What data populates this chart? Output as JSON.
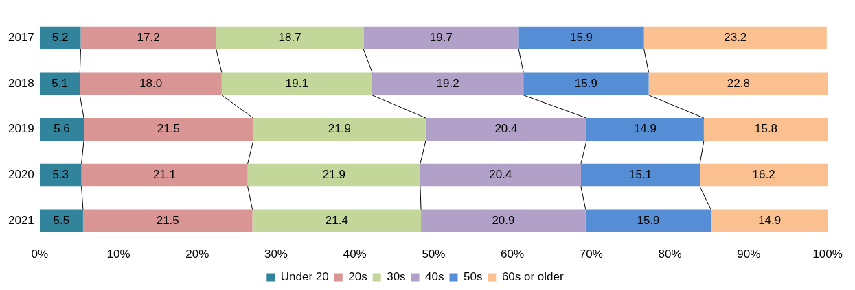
{
  "chart_data": {
    "type": "bar",
    "orientation": "horizontal",
    "stacked": true,
    "categories": [
      "2017",
      "2018",
      "2019",
      "2020",
      "2021"
    ],
    "series": [
      {
        "name": "Under 20",
        "color": "#31849b",
        "values": [
          5.2,
          5.1,
          5.6,
          5.3,
          5.5
        ],
        "value_labels": [
          "5.2",
          "5.1",
          "5.6",
          "5.3",
          "5.5"
        ]
      },
      {
        "name": "20s",
        "color": "#da9694",
        "values": [
          17.2,
          18.0,
          21.5,
          21.1,
          21.5
        ],
        "value_labels": [
          "17.2",
          "18.0",
          "21.5",
          "21.1",
          "21.5"
        ]
      },
      {
        "name": "30s",
        "color": "#c4d79b",
        "values": [
          18.7,
          19.1,
          21.9,
          21.9,
          21.4
        ],
        "value_labels": [
          "18.7",
          "19.1",
          "21.9",
          "21.9",
          "21.4"
        ]
      },
      {
        "name": "40s",
        "color": "#b1a0c7",
        "values": [
          19.7,
          19.2,
          20.4,
          20.4,
          20.9
        ],
        "value_labels": [
          "19.7",
          "19.2",
          "20.4",
          "20.4",
          "20.9"
        ]
      },
      {
        "name": "50s",
        "color": "#558ed5",
        "values": [
          15.9,
          15.9,
          14.9,
          15.1,
          15.9
        ],
        "value_labels": [
          "15.9",
          "15.9",
          "14.9",
          "15.1",
          "15.9"
        ]
      },
      {
        "name": "60s or older",
        "color": "#fac090",
        "values": [
          23.2,
          22.8,
          15.8,
          16.2,
          14.9
        ],
        "value_labels": [
          "23.2",
          "22.8",
          "15.8",
          "16.2",
          "14.9"
        ]
      }
    ],
    "xlim": [
      0,
      100
    ],
    "xticks": [
      {
        "value": 0,
        "label": "0%"
      },
      {
        "value": 10,
        "label": "10%"
      },
      {
        "value": 20,
        "label": "20%"
      },
      {
        "value": 30,
        "label": "30%"
      },
      {
        "value": 40,
        "label": "40%"
      },
      {
        "value": 50,
        "label": "50%"
      },
      {
        "value": 60,
        "label": "60%"
      },
      {
        "value": 70,
        "label": "70%"
      },
      {
        "value": 80,
        "label": "80%"
      },
      {
        "value": 90,
        "label": "90%"
      },
      {
        "value": 100,
        "label": "100%"
      }
    ],
    "legend": "bottom",
    "grid": false
  }
}
